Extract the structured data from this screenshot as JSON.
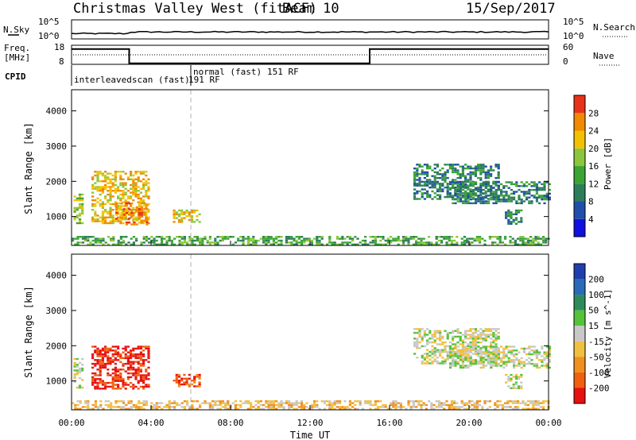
{
  "header": {
    "title": "Christmas Valley West (fitACF)",
    "beam": "Beam 10",
    "date": "15/Sep/2017"
  },
  "strips": {
    "nsky_label": "N.Sky",
    "nsky_ticks": [
      "10^5",
      "10^0"
    ],
    "nsearch_label": "N.Search",
    "nsearch_ticks": [
      "10^5",
      "10^0"
    ],
    "freq_label": "Freq.",
    "freq_unit": "[MHz]",
    "freq_ticks": [
      "18",
      "8"
    ],
    "nave_label": "Nave",
    "nave_ticks": [
      "60",
      "0"
    ],
    "cpid_label": "CPID",
    "cpid_segments": [
      {
        "label": "interleavedscan (fast)",
        "start_h": 0,
        "end_h": 6.0
      },
      {
        "label": "191 RF",
        "start_h": 0,
        "end_h": 6.0
      },
      {
        "label": "normal (fast)",
        "start_h": 6.0,
        "end_h": 24
      },
      {
        "label": "151 RF",
        "start_h": 6.0,
        "end_h": 24
      }
    ],
    "freq_steps": [
      {
        "start_h": 0,
        "end_h": 2.9,
        "mhz": 16
      },
      {
        "start_h": 2.9,
        "end_h": 15.0,
        "mhz": 8.5
      },
      {
        "start_h": 15.0,
        "end_h": 24,
        "mhz": 16
      }
    ]
  },
  "chart_data": [
    {
      "type": "heatmap",
      "name": "power",
      "ylabel": "Slant Range [km]",
      "xlabel": "",
      "x_ticks": [
        "00:00",
        "04:00",
        "08:00",
        "12:00",
        "16:00",
        "20:00",
        "00:00"
      ],
      "y_ticks": [
        "1000",
        "2000",
        "3000",
        "4000"
      ],
      "ylim": [
        180,
        4600
      ],
      "xlim_hours": [
        0,
        24
      ],
      "colorbar": {
        "label": "Power [dB]",
        "ticks": [
          "4",
          "8",
          "12",
          "16",
          "20",
          "24",
          "28"
        ],
        "colors": [
          "#1010e0",
          "#1f4fa8",
          "#2e7d5a",
          "#3aa535",
          "#8cc63f",
          "#f2c200",
          "#f08a00",
          "#e8321a"
        ]
      },
      "regions": [
        {
          "h0": 0.0,
          "h1": 24.0,
          "r0": 200,
          "r1": 450,
          "level": 3
        },
        {
          "h0": 0.1,
          "h1": 0.6,
          "r0": 800,
          "r1": 1650,
          "level": 4
        },
        {
          "h0": 1.0,
          "h1": 3.9,
          "r0": 800,
          "r1": 2300,
          "level": 5
        },
        {
          "h0": 2.2,
          "h1": 3.8,
          "r0": 800,
          "r1": 1400,
          "level": 6
        },
        {
          "h0": 5.1,
          "h1": 6.4,
          "r0": 850,
          "r1": 1200,
          "level": 5
        },
        {
          "h0": 17.2,
          "h1": 21.5,
          "r0": 1500,
          "r1": 2500,
          "level": 2
        },
        {
          "h0": 19.0,
          "h1": 24.0,
          "r0": 1400,
          "r1": 2000,
          "level": 2
        },
        {
          "h0": 21.8,
          "h1": 22.6,
          "r0": 800,
          "r1": 1200,
          "level": 2
        }
      ]
    },
    {
      "type": "heatmap",
      "name": "velocity",
      "ylabel": "Slant Range [km]",
      "xlabel": "Time UT",
      "x_ticks": [
        "00:00",
        "04:00",
        "08:00",
        "12:00",
        "16:00",
        "20:00",
        "00:00"
      ],
      "y_ticks": [
        "1000",
        "2000",
        "3000",
        "4000"
      ],
      "ylim": [
        180,
        4600
      ],
      "xlim_hours": [
        0,
        24
      ],
      "colorbar": {
        "label": "Velocity [m s^-1]",
        "ticks": [
          "200",
          "100",
          "50",
          "15",
          "-15",
          "-50",
          "-100",
          "-200"
        ],
        "colors": [
          "#1f3fb0",
          "#2a6ab8",
          "#2e8a5a",
          "#56c23a",
          "#c8c8c8",
          "#f0c040",
          "#f09020",
          "#f06010",
          "#e81010"
        ]
      },
      "regions": [
        {
          "h0": 0.0,
          "h1": 24.0,
          "r0": 200,
          "r1": 450,
          "level": 5
        },
        {
          "h0": 0.1,
          "h1": 0.6,
          "r0": 800,
          "r1": 1650,
          "level": 4
        },
        {
          "h0": 1.0,
          "h1": 3.9,
          "r0": 800,
          "r1": 2000,
          "level": 8
        },
        {
          "h0": 5.1,
          "h1": 6.4,
          "r0": 850,
          "r1": 1200,
          "level": 7
        },
        {
          "h0": 17.2,
          "h1": 21.5,
          "r0": 1500,
          "r1": 2500,
          "level": 4
        },
        {
          "h0": 19.0,
          "h1": 24.0,
          "r0": 1400,
          "r1": 2000,
          "level": 4
        },
        {
          "h0": 21.8,
          "h1": 22.6,
          "r0": 800,
          "r1": 1200,
          "level": 4
        }
      ]
    }
  ]
}
